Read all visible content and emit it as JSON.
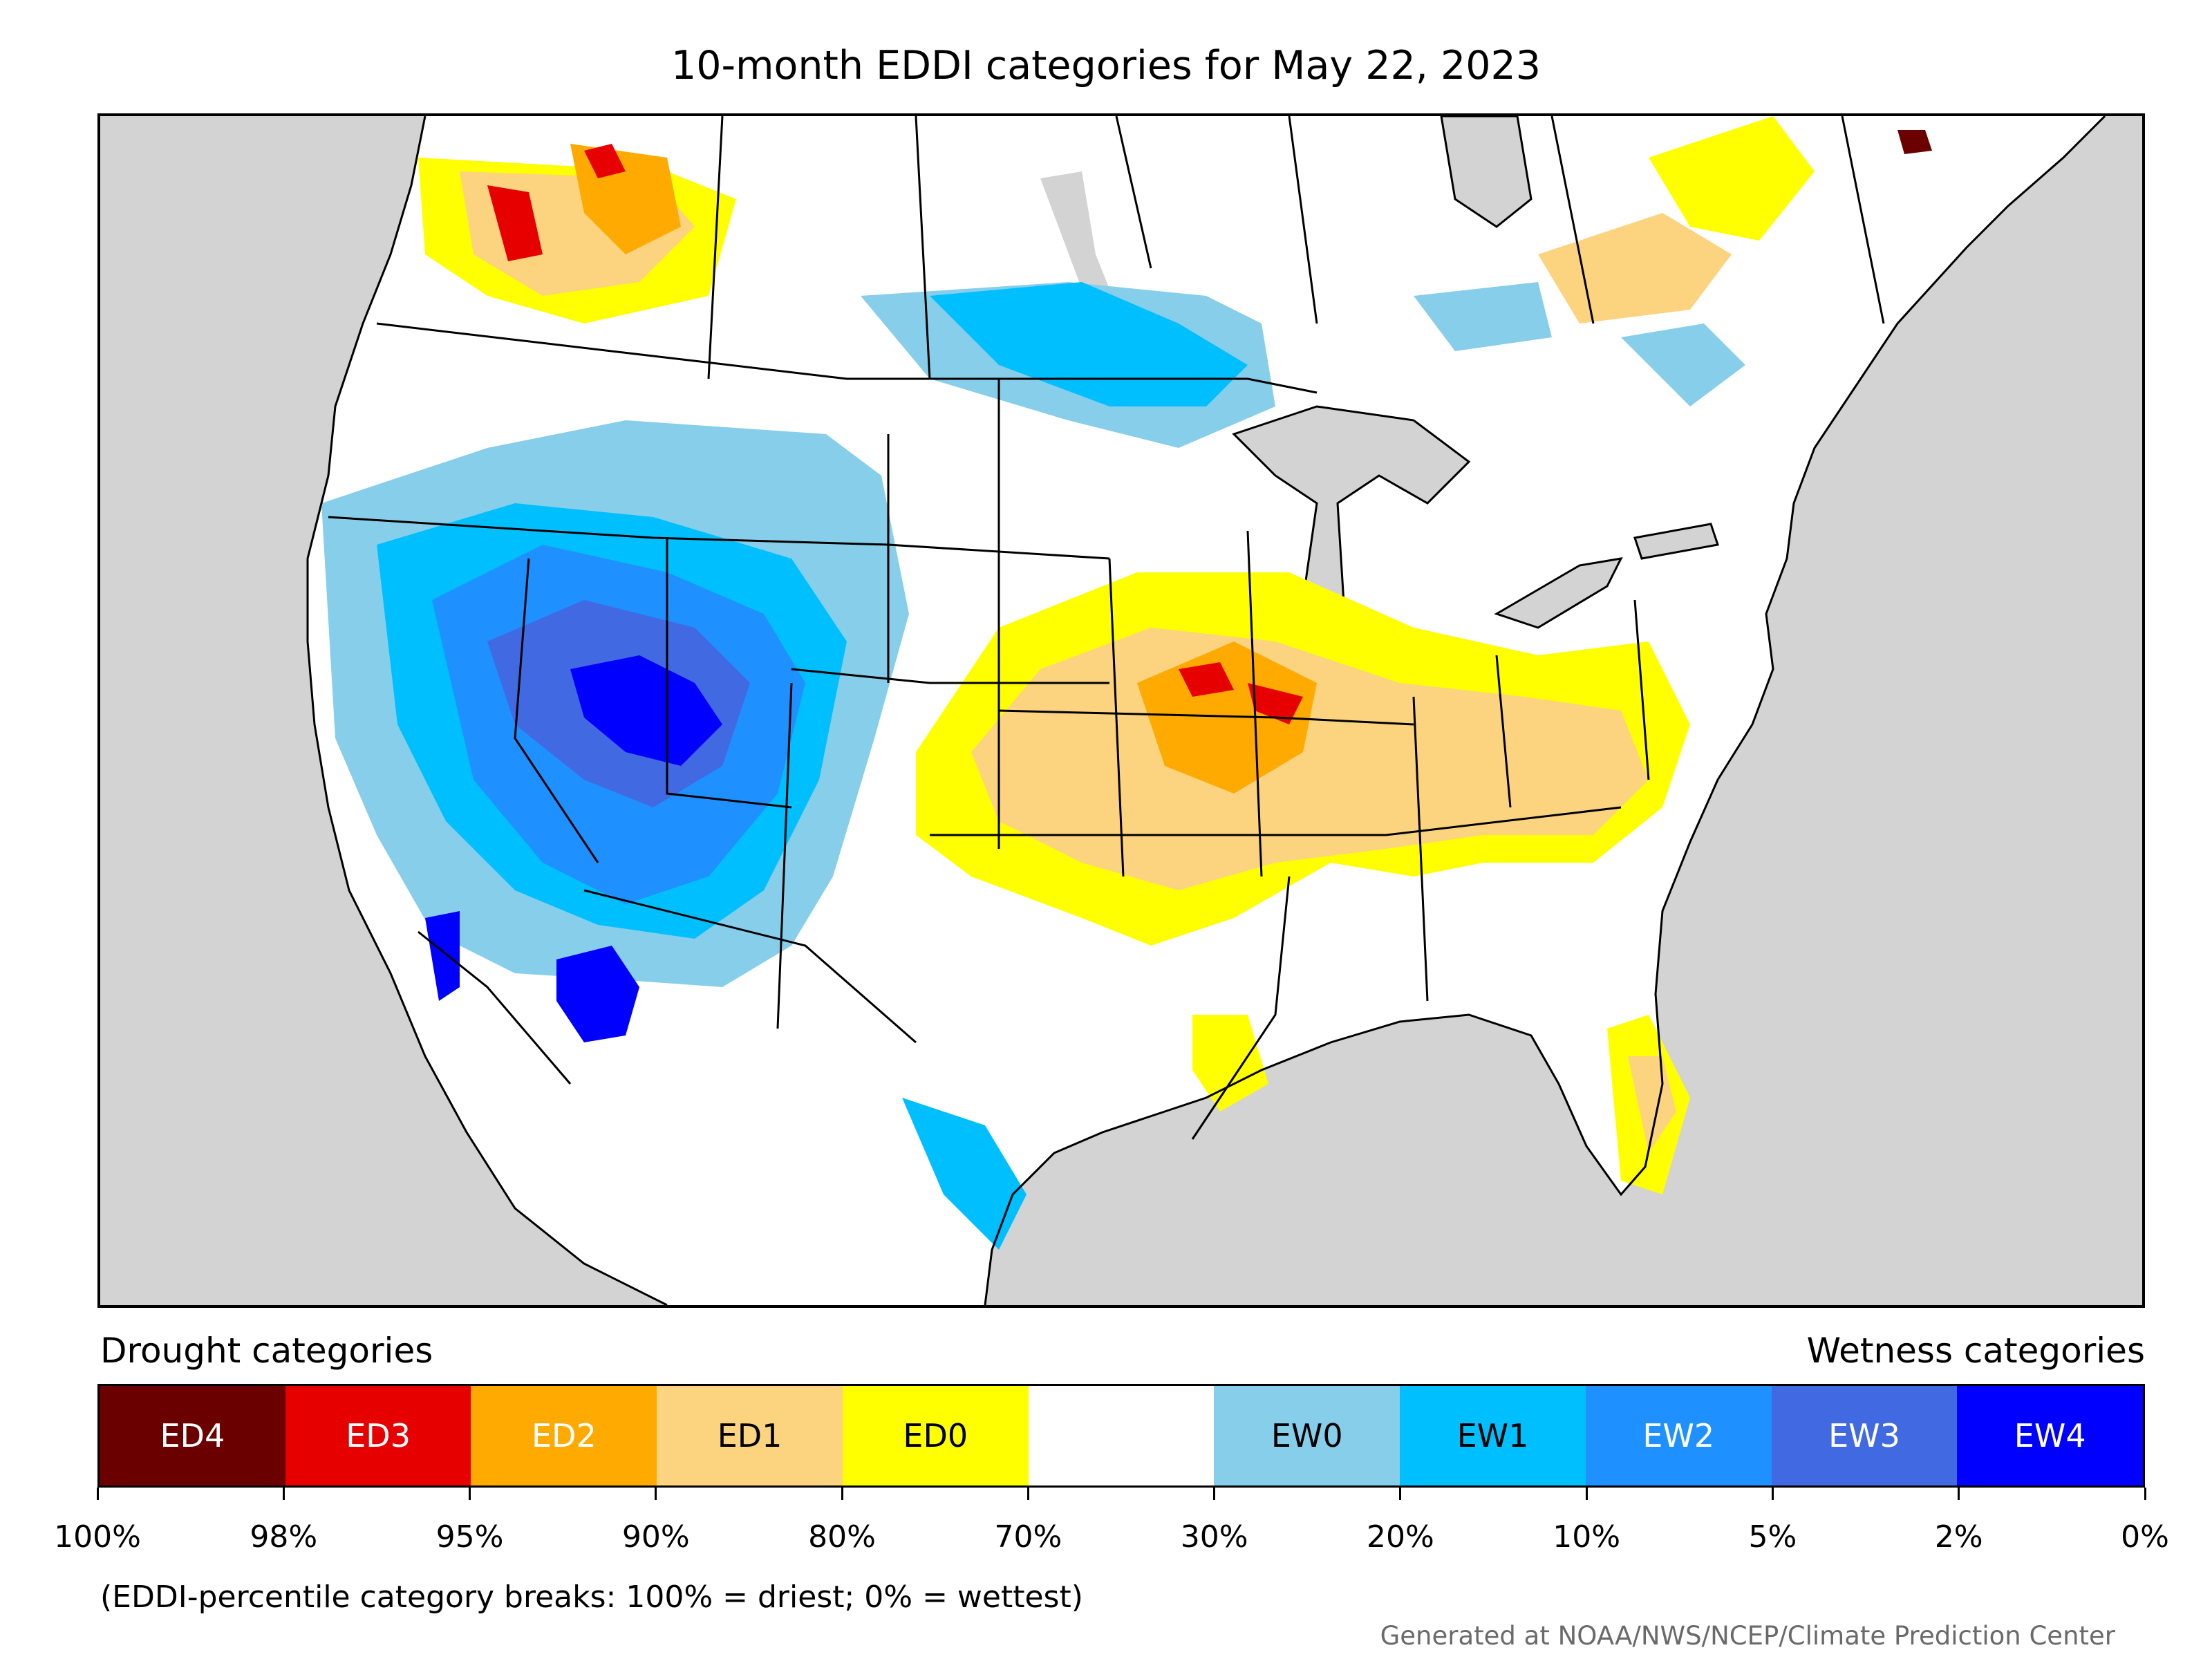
{
  "title": "10-month EDDI categories for May 22, 2023",
  "legend": {
    "left_heading": "Drought categories",
    "right_heading": "Wetness categories",
    "categories": [
      {
        "label": "ED4",
        "color": "#6b0000",
        "text_color": "#ffffff"
      },
      {
        "label": "ED3",
        "color": "#e60000",
        "text_color": "#ffffff"
      },
      {
        "label": "ED2",
        "color": "#ffaa00",
        "text_color": "#ffffff"
      },
      {
        "label": "ED1",
        "color": "#fcd37f",
        "text_color": "#000000"
      },
      {
        "label": "ED0",
        "color": "#ffff00",
        "text_color": "#000000"
      },
      {
        "label": "",
        "color": "#ffffff",
        "text_color": "#000000"
      },
      {
        "label": "EW0",
        "color": "#87ceeb",
        "text_color": "#000000"
      },
      {
        "label": "EW1",
        "color": "#00bfff",
        "text_color": "#000000"
      },
      {
        "label": "EW2",
        "color": "#1e90ff",
        "text_color": "#ffffff"
      },
      {
        "label": "EW3",
        "color": "#4169e1",
        "text_color": "#ffffff"
      },
      {
        "label": "EW4",
        "color": "#0000ff",
        "text_color": "#ffffff"
      }
    ],
    "breaks": [
      "100%",
      "98%",
      "95%",
      "90%",
      "80%",
      "70%",
      "30%",
      "20%",
      "10%",
      "5%",
      "2%",
      "0%"
    ]
  },
  "note": "(EDDI-percentile category breaks: 100% = driest; 0% = wettest)",
  "credit": "Generated at NOAA/NWS/NCEP/Climate Prediction Center",
  "map_colors": {
    "ocean": "#d3d3d3",
    "land": "#ffffff",
    "border": "#000000"
  }
}
